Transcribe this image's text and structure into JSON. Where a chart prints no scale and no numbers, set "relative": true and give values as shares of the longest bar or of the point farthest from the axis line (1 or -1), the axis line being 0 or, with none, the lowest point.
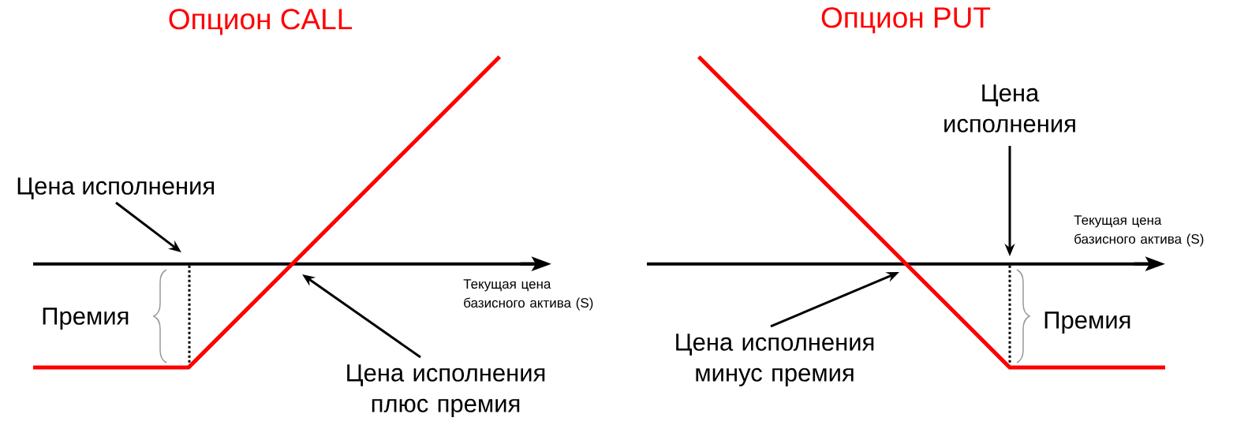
{
  "chart_data": [
    {
      "type": "line",
      "title": "Опцион CALL",
      "xlabel": "Текущая цена базисного актива (S)",
      "relative": true,
      "categories": [
        null,
        null,
        null,
        null,
        null,
        null,
        null,
        null,
        null,
        null,
        null
      ],
      "values": [
        -0.5,
        -0.5,
        -0.5,
        -0.5,
        -0.25,
        0,
        0.25,
        0.5,
        0.75,
        1,
        null
      ],
      "color": "#ff0000",
      "annotations": [
        "Цена исполнения",
        "Премия",
        "Цена исполнения плюс премия"
      ]
    },
    {
      "type": "line",
      "title": "Опцион PUT",
      "xlabel": "Текущая цена базисного актива (S)",
      "relative": true,
      "categories": [
        null,
        null,
        null,
        null,
        null,
        null,
        null,
        null,
        null,
        null,
        null
      ],
      "values": [
        null,
        1,
        0.75,
        0.5,
        0.25,
        0,
        -0.25,
        -0.5,
        -0.5,
        -0.5,
        -0.5
      ],
      "color": "#ff0000",
      "annotations": [
        "Цена исполнения",
        "Премия",
        "Цена исполнения минус премия"
      ]
    }
  ]
}
